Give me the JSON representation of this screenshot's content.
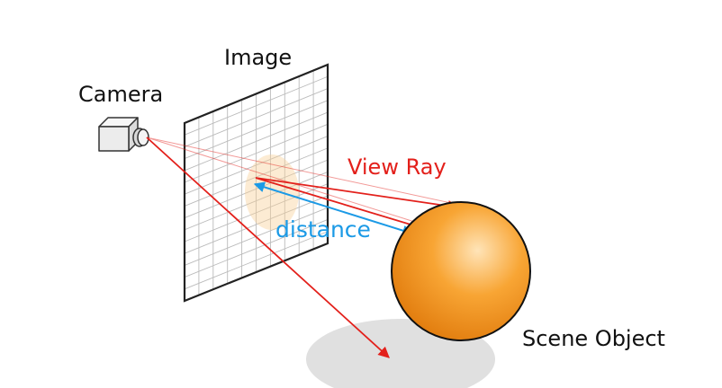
{
  "labels": {
    "image": "Image",
    "camera": "Camera",
    "view_ray": "View Ray",
    "distance": "distance",
    "scene_object": "Scene Object"
  },
  "colors": {
    "ray": "#e3201b",
    "distance": "#1b9ae6",
    "sphere_light": "#ffe4b8",
    "sphere_mid": "#f8a534",
    "sphere_dark": "#e07a0c",
    "shadow": "#e0e0e0",
    "grid": "#bbbbbb",
    "frame": "#222222"
  },
  "grid": {
    "columns": 10,
    "rows": 15
  }
}
